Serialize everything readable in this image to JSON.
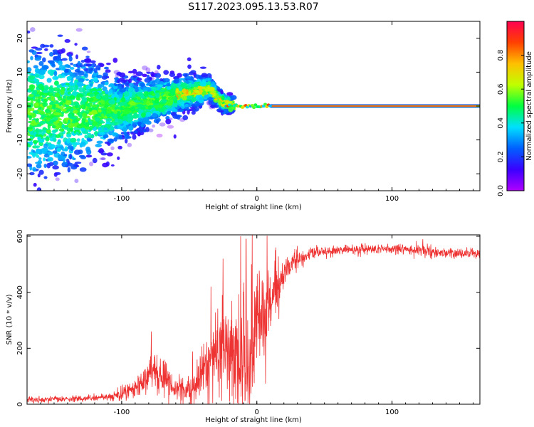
{
  "title": "S117.2023.095.13.53.R07",
  "chart_data": [
    {
      "type": "heatmap",
      "xlabel": "Height of straight line (km)",
      "ylabel": "Frequency (Hz)",
      "xlim": [
        -170,
        165
      ],
      "ylim": [
        -25,
        25
      ],
      "xticks": [
        -100,
        0,
        100
      ],
      "yticks": [
        -20,
        -10,
        0,
        10,
        20
      ],
      "colorbar": {
        "label": "Normalized spectral amplitude",
        "ticks": [
          0.0,
          0.2,
          0.4,
          0.6,
          0.8
        ],
        "range": [
          0,
          1
        ],
        "colormap": "gist_rainbow",
        "colors": [
          "#b000ff",
          "#3a00ff",
          "#0060ff",
          "#00e0ff",
          "#00ff40",
          "#c0ff00",
          "#ffc000",
          "#ff4000",
          "#ff0050"
        ]
      },
      "description_of_signal": {
        "noise_region_x": [
          -170,
          -25
        ],
        "noise_center_freq": [
          [
            -170,
            -2
          ],
          [
            -100,
            -1
          ],
          [
            -70,
            2
          ],
          [
            -50,
            4
          ],
          [
            -35,
            5
          ],
          [
            -25,
            1
          ],
          [
            -15,
            0
          ]
        ],
        "noise_spread_hz": [
          [
            -170,
            20
          ],
          [
            -130,
            15
          ],
          [
            -100,
            8
          ],
          [
            -70,
            6
          ],
          [
            -40,
            4
          ],
          [
            -20,
            2
          ]
        ],
        "tone_start_x": 10,
        "tone_freq": 0,
        "tone_amplitude": 1.0
      }
    },
    {
      "type": "line",
      "xlabel": "Height of straight line (km)",
      "ylabel": "SNR (10 * v/v)",
      "xlim": [
        -170,
        165
      ],
      "ylim": [
        0,
        605
      ],
      "xticks": [
        -100,
        0,
        100
      ],
      "yticks": [
        0,
        200,
        400,
        600
      ],
      "color": "#ee3333",
      "trend": [
        [
          -170,
          15
        ],
        [
          -150,
          17
        ],
        [
          -130,
          20
        ],
        [
          -110,
          25
        ],
        [
          -100,
          35
        ],
        [
          -90,
          60
        ],
        [
          -85,
          80
        ],
        [
          -80,
          110
        ],
        [
          -76,
          140
        ],
        [
          -72,
          110
        ],
        [
          -68,
          80
        ],
        [
          -62,
          60
        ],
        [
          -55,
          50
        ],
        [
          -48,
          50
        ],
        [
          -42,
          90
        ],
        [
          -36,
          140
        ],
        [
          -32,
          190
        ],
        [
          -28,
          210
        ],
        [
          -24,
          200
        ],
        [
          -20,
          190
        ],
        [
          -17,
          210
        ],
        [
          -13,
          150
        ],
        [
          -9,
          120
        ],
        [
          -6,
          140
        ],
        [
          -3,
          200
        ],
        [
          0,
          270
        ],
        [
          3,
          310
        ],
        [
          6,
          330
        ],
        [
          10,
          350
        ],
        [
          15,
          400
        ],
        [
          20,
          470
        ],
        [
          28,
          510
        ],
        [
          40,
          540
        ],
        [
          60,
          550
        ],
        [
          90,
          555
        ],
        [
          120,
          550
        ],
        [
          140,
          540
        ],
        [
          165,
          535
        ]
      ],
      "noise_amp": [
        [
          -170,
          12
        ],
        [
          -110,
          12
        ],
        [
          -90,
          40
        ],
        [
          -76,
          70
        ],
        [
          -60,
          40
        ],
        [
          -45,
          60
        ],
        [
          -30,
          140
        ],
        [
          -15,
          200
        ],
        [
          0,
          200
        ],
        [
          15,
          120
        ],
        [
          20,
          50
        ],
        [
          40,
          20
        ],
        [
          100,
          18
        ],
        [
          165,
          18
        ]
      ],
      "spikes": [
        [
          -12,
          600
        ],
        [
          -8,
          590
        ],
        [
          -25,
          520
        ],
        [
          -34,
          420
        ],
        [
          -4,
          500
        ],
        [
          14,
          560
        ],
        [
          -78,
          260
        ]
      ]
    }
  ]
}
